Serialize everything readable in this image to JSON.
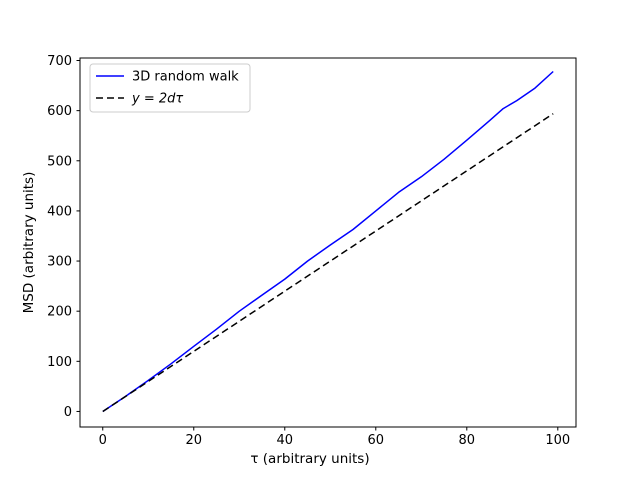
{
  "figure": {
    "background": "#ffffff"
  },
  "chart_data": {
    "type": "line",
    "title": "",
    "xlabel": "τ (arbitrary units)",
    "ylabel": "MSD (arbitrary units)",
    "xlim": [
      -5,
      104
    ],
    "ylim": [
      -31,
      705
    ],
    "xticks": [
      0,
      20,
      40,
      60,
      80,
      100
    ],
    "yticks": [
      0,
      100,
      200,
      300,
      400,
      500,
      600,
      700
    ],
    "grid": false,
    "legend_position": "upper-left",
    "series": [
      {
        "name": "3D random walk",
        "color": "#0000ff",
        "style": "solid",
        "italic_label": false,
        "x": [
          0,
          5,
          10,
          15,
          20,
          25,
          30,
          35,
          40,
          45,
          50,
          55,
          60,
          65,
          70,
          75,
          80,
          85,
          88,
          91,
          95,
          99
        ],
        "y": [
          0,
          30,
          62,
          95,
          130,
          164,
          200,
          232,
          264,
          300,
          332,
          363,
          400,
          437,
          468,
          503,
          541,
          580,
          604,
          620,
          645,
          678
        ]
      },
      {
        "name": "y = 2dτ",
        "color": "#000000",
        "style": "dashed",
        "italic_label": true,
        "x": [
          0,
          99
        ],
        "y": [
          0,
          594
        ]
      }
    ]
  }
}
